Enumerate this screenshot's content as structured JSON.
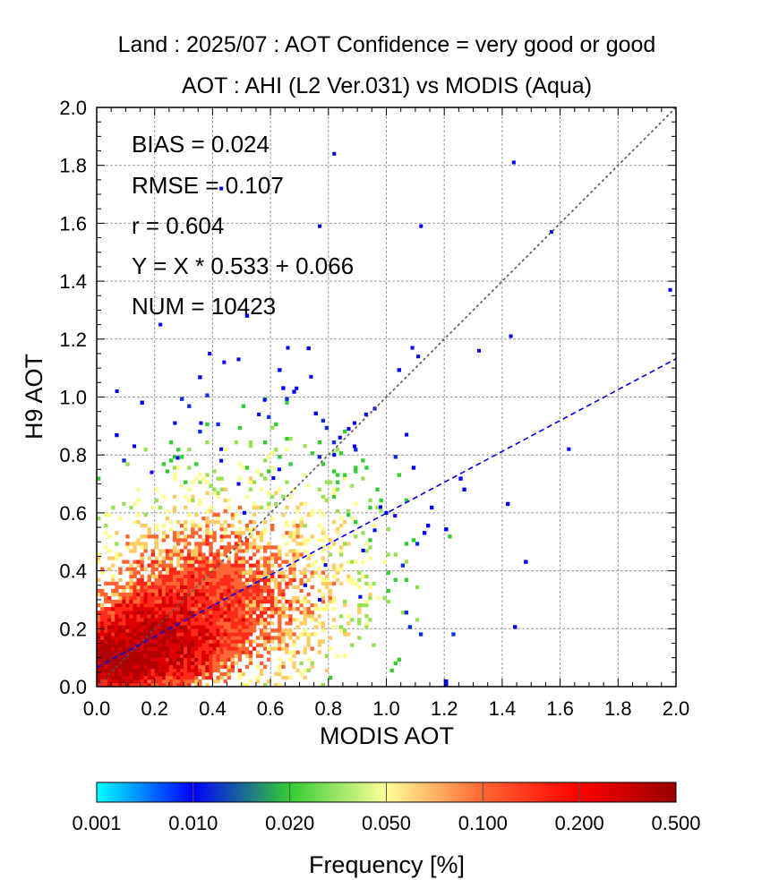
{
  "chart_data": {
    "type": "heatmap",
    "title": "Land  :  2025/07 :  AOT Confidence = very good or good",
    "subtitle": "AOT : AHI (L2 Ver.031) vs MODIS (Aqua)",
    "xlabel": "MODIS AOT",
    "ylabel": "H9 AOT",
    "xlim": [
      0.0,
      2.0
    ],
    "ylim": [
      0.0,
      2.0
    ],
    "xticks": [
      "0.0",
      "0.2",
      "0.4",
      "0.6",
      "0.8",
      "1.0",
      "1.2",
      "1.4",
      "1.6",
      "1.8",
      "2.0"
    ],
    "yticks": [
      "0.0",
      "0.2",
      "0.4",
      "0.6",
      "0.8",
      "1.0",
      "1.2",
      "1.4",
      "1.6",
      "1.8",
      "2.0"
    ],
    "grid": true,
    "stats": {
      "bias": "BIAS = 0.024",
      "rmse": "RMSE = 0.107",
      "r": "r = 0.604",
      "fit": "Y = X * 0.533 + 0.066",
      "num": "NUM = 10423"
    },
    "regression": {
      "slope": 0.533,
      "intercept": 0.066
    },
    "one_to_one_line": true,
    "colorbar": {
      "label": "Frequency [%]",
      "ticks": [
        "0.001",
        "0.010",
        "0.020",
        "0.050",
        "0.100",
        "0.200",
        "0.500"
      ],
      "colors": [
        "#00ffff",
        "#0000ff",
        "#33cc33",
        "#ffff99",
        "#ff6633",
        "#ff0000",
        "#990000"
      ]
    },
    "outlier_points": [
      [
        0.82,
        1.84
      ],
      [
        1.44,
        1.81
      ],
      [
        0.43,
        1.72
      ],
      [
        0.77,
        1.59
      ],
      [
        1.12,
        1.59
      ],
      [
        1.57,
        1.57
      ],
      [
        1.98,
        1.37
      ],
      [
        0.22,
        1.25
      ],
      [
        0.66,
        1.17
      ],
      [
        1.09,
        1.17
      ],
      [
        1.32,
        1.16
      ],
      [
        1.43,
        1.21
      ],
      [
        0.39,
        1.15
      ],
      [
        0.44,
        1.12
      ],
      [
        0.49,
        1.13
      ],
      [
        1.11,
        1.14
      ],
      [
        0.07,
        1.02
      ],
      [
        0.69,
        1.03
      ],
      [
        0.74,
        1.07
      ],
      [
        0.58,
        0.99
      ],
      [
        0.56,
        0.94
      ],
      [
        0.93,
        0.94
      ],
      [
        0.96,
        0.96
      ],
      [
        0.27,
        0.91
      ],
      [
        0.36,
        0.91
      ],
      [
        0.89,
        0.91
      ],
      [
        0.87,
        0.89
      ],
      [
        0.84,
        0.86
      ],
      [
        1.07,
        0.87
      ],
      [
        0.13,
        0.83
      ],
      [
        0.43,
        0.82
      ],
      [
        0.89,
        0.83
      ],
      [
        1.63,
        0.82
      ],
      [
        0.28,
        0.79
      ],
      [
        0.43,
        0.78
      ],
      [
        0.82,
        0.8
      ],
      [
        0.63,
        0.75
      ],
      [
        0.98,
        0.62
      ],
      [
        1.03,
        0.59
      ],
      [
        0.96,
        0.54
      ],
      [
        0.49,
        0.7
      ],
      [
        0.61,
        0.72
      ],
      [
        0.19,
        0.74
      ],
      [
        0.92,
        0.47
      ],
      [
        0.79,
        0.42
      ],
      [
        0.91,
        0.31
      ],
      [
        0.72,
        0.35
      ],
      [
        1.0,
        0.6
      ],
      [
        0.51,
        0.6
      ],
      [
        0.77,
        0.3
      ]
    ]
  }
}
